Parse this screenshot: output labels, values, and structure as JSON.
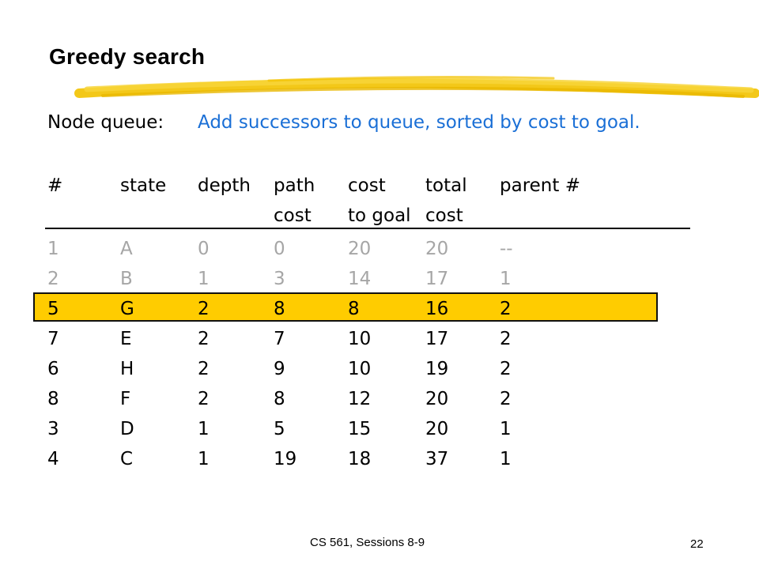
{
  "slide": {
    "title": "Greedy search",
    "node_queue_label": "Node queue:",
    "node_queue_text": "Add successors to queue, sorted by cost to goal.",
    "headers": {
      "num": "#",
      "state": "state",
      "depth": "depth",
      "path_top": "path",
      "path_bottom": "cost",
      "cost_top": "cost",
      "cost_bottom": "to goal",
      "total_top": "total",
      "total_bottom": "cost",
      "parent": "parent #"
    },
    "rows": [
      {
        "num": "1",
        "state": "A",
        "depth": "0",
        "path": "0",
        "goal": "20",
        "total": "20",
        "parent": "--"
      },
      {
        "num": "2",
        "state": "B",
        "depth": "1",
        "path": "3",
        "goal": "14",
        "total": "17",
        "parent": "1"
      },
      {
        "num": "5",
        "state": "G",
        "depth": "2",
        "path": "8",
        "goal": "8",
        "total": "16",
        "parent": "2"
      },
      {
        "num": "7",
        "state": "E",
        "depth": "2",
        "path": "7",
        "goal": "10",
        "total": "17",
        "parent": "2"
      },
      {
        "num": "6",
        "state": "H",
        "depth": "2",
        "path": "9",
        "goal": "10",
        "total": "19",
        "parent": "2"
      },
      {
        "num": "8",
        "state": "F",
        "depth": "2",
        "path": "8",
        "goal": "12",
        "total": "20",
        "parent": "2"
      },
      {
        "num": "3",
        "state": "D",
        "depth": "1",
        "path": "5",
        "goal": "15",
        "total": "20",
        "parent": "1"
      },
      {
        "num": "4",
        "state": "C",
        "depth": "1",
        "path": "19",
        "goal": "18",
        "total": "37",
        "parent": "1"
      }
    ],
    "faded_rows": [
      0,
      1
    ],
    "highlight_row": 2,
    "footer": "CS 561,  Sessions 8-9",
    "page_number": "22"
  },
  "colors": {
    "accent_blue": "#1a6fd6",
    "highlight": "#ffcc00",
    "faded_text": "#a6a6a6",
    "brush_stroke": "#f2c200"
  }
}
